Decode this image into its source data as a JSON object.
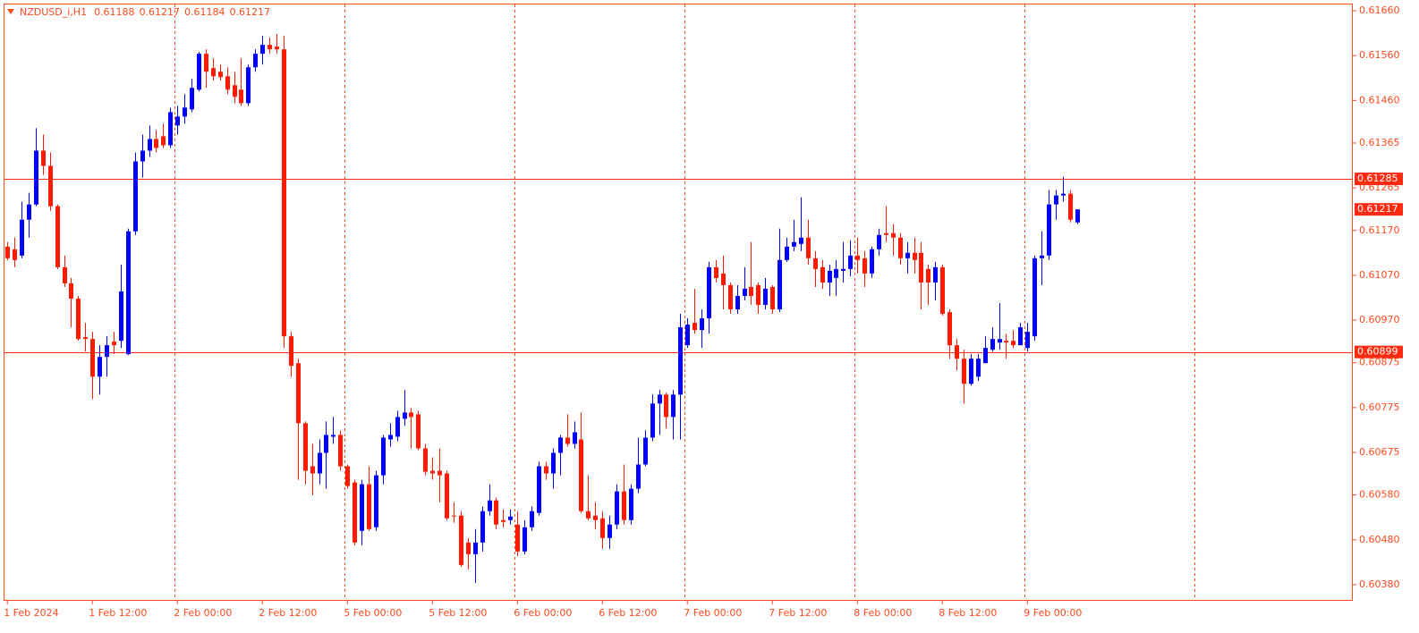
{
  "chart_data": {
    "type": "candlestick",
    "title": "NZDUSD_i,H1",
    "up_color": "#0000ff",
    "down_color": "#ff1a00",
    "axis_color": "#ff4a1c",
    "level_color": "#ff2a10",
    "grid": true,
    "categories": [
      "1 Feb 2024",
      null,
      null,
      null,
      null,
      null,
      null,
      null,
      null,
      null,
      null,
      null,
      "1 Feb 12:00",
      null,
      null,
      null,
      null,
      null,
      null,
      null,
      null,
      null,
      null,
      null,
      "2 Feb 00:00",
      null,
      null,
      null,
      null,
      null,
      null,
      null,
      null,
      null,
      null,
      null,
      "2 Feb 12:00",
      null,
      null,
      null,
      null,
      null,
      null,
      null,
      null,
      null,
      null,
      null,
      "5 Feb 00:00",
      null,
      null,
      null,
      null,
      null,
      null,
      null,
      null,
      null,
      null,
      null,
      "5 Feb 12:00",
      null,
      null,
      null,
      null,
      null,
      null,
      null,
      null,
      null,
      null,
      null,
      "6 Feb 00:00",
      null,
      null,
      null,
      null,
      null,
      null,
      null,
      null,
      null,
      null,
      null,
      "6 Feb 12:00",
      null,
      null,
      null,
      null,
      null,
      null,
      null,
      null,
      null,
      null,
      null,
      "7 Feb 00:00",
      null,
      null,
      null,
      null,
      null,
      null,
      null,
      null,
      null,
      null,
      null,
      "7 Feb 12:00",
      null,
      null,
      null,
      null,
      null,
      null,
      null,
      null,
      null,
      null,
      null,
      "8 Feb 00:00",
      null,
      null,
      null,
      null,
      null,
      null,
      null,
      null,
      null,
      null,
      null,
      "8 Feb 12:00",
      null,
      null,
      null,
      null,
      null,
      null,
      null,
      null,
      null,
      null,
      null,
      "9 Feb 00:00",
      null,
      null,
      null,
      null,
      null,
      null,
      null
    ],
    "open": [
      0.61134,
      0.61128,
      0.61114,
      0.61194,
      0.61228,
      0.61348,
      0.61314,
      0.61224,
      0.61088,
      0.61052,
      0.61018,
      0.60932,
      0.60928,
      0.60844,
      0.60888,
      0.60922,
      0.60924,
      0.60894,
      0.61168,
      0.61324,
      0.61348,
      0.61374,
      0.6138,
      0.6136,
      0.61404,
      0.61424,
      0.6144,
      0.61484,
      0.61564,
      0.61532,
      0.61524,
      0.61514,
      0.61494,
      0.61484,
      0.61454,
      0.61534,
      0.61564,
      0.61584,
      0.6158,
      0.61574,
      0.60934,
      0.60874,
      0.6074,
      0.60644,
      0.60628,
      0.60674,
      0.6071,
      0.60714,
      0.60644,
      0.60608,
      0.605,
      0.60604,
      0.60508,
      0.60624,
      0.60704,
      0.6071,
      0.6075,
      0.60764,
      0.6076,
      0.60684,
      0.60634,
      0.60634,
      0.60628,
      0.60534,
      0.60534,
      0.60474,
      0.60448,
      0.60474,
      0.60544,
      0.60568,
      0.60524,
      0.60524,
      0.60514,
      0.60454,
      0.60508,
      0.6054,
      0.60644,
      0.60628,
      0.60674,
      0.60708,
      0.60694,
      0.60704,
      0.60544,
      0.60534,
      0.60528,
      0.60484,
      0.60514,
      0.60588,
      0.60524,
      0.60594,
      0.60648,
      0.60708,
      0.60784,
      0.60804,
      0.60754,
      0.60804,
      0.60914,
      0.60964,
      0.60948,
      0.60974,
      0.61088,
      0.61074,
      0.61048,
      0.60994,
      0.61024,
      0.61044,
      0.61048,
      0.61004,
      0.61044,
      0.60994,
      0.61104,
      0.61134,
      0.6114,
      0.61154,
      0.61108,
      0.61088,
      0.61054,
      0.61064,
      0.6108,
      0.61084,
      0.61114,
      0.61108,
      0.61074,
      0.61128,
      0.61164,
      0.61164,
      0.61154,
      0.61108,
      0.6112,
      0.6112,
      0.61084,
      0.61054,
      0.61088,
      0.60988,
      0.60914,
      0.60884,
      0.60828,
      0.60844,
      0.60874,
      0.60904,
      0.6092,
      0.60924,
      0.60924,
      0.60914,
      0.60908,
      0.60934,
      0.61108,
      0.61114,
      0.61228,
      0.61248,
      0.61252,
      0.61188
    ],
    "high": [
      0.61144,
      0.61154,
      0.61234,
      0.61254,
      0.61398,
      0.61384,
      0.61344,
      0.61228,
      0.61114,
      0.61064,
      0.61024,
      0.60964,
      0.60944,
      0.60914,
      0.60934,
      0.60944,
      0.61094,
      0.61174,
      0.61344,
      0.61384,
      0.61404,
      0.61394,
      0.61408,
      0.61444,
      0.61448,
      0.61474,
      0.61508,
      0.61568,
      0.61574,
      0.61554,
      0.6154,
      0.61534,
      0.61524,
      0.61554,
      0.6154,
      0.61574,
      0.61604,
      0.616,
      0.61608,
      0.61604,
      0.60944,
      0.60884,
      0.60744,
      0.60694,
      0.60704,
      0.60744,
      0.60754,
      0.60724,
      0.60648,
      0.60614,
      0.60614,
      0.60644,
      0.60634,
      0.60714,
      0.6074,
      0.60768,
      0.60814,
      0.60774,
      0.60768,
      0.60694,
      0.60664,
      0.60684,
      0.60634,
      0.60564,
      0.60544,
      0.60484,
      0.60504,
      0.60554,
      0.60604,
      0.60574,
      0.60548,
      0.60548,
      0.60544,
      0.60524,
      0.60554,
      0.60654,
      0.60654,
      0.60684,
      0.60714,
      0.6076,
      0.60744,
      0.60764,
      0.60624,
      0.60564,
      0.60544,
      0.60534,
      0.60604,
      0.60648,
      0.60604,
      0.60708,
      0.60724,
      0.60804,
      0.60814,
      0.60808,
      0.60814,
      0.60984,
      0.60974,
      0.6104,
      0.60994,
      0.611,
      0.61104,
      0.61114,
      0.61054,
      0.61048,
      0.61088,
      0.61144,
      0.61054,
      0.61064,
      0.61048,
      0.61174,
      0.61154,
      0.61194,
      0.61244,
      0.61194,
      0.61124,
      0.61104,
      0.61094,
      0.61104,
      0.61144,
      0.61148,
      0.61154,
      0.61124,
      0.61134,
      0.61174,
      0.61224,
      0.61184,
      0.61164,
      0.61144,
      0.61154,
      0.61144,
      0.61094,
      0.611,
      0.61094,
      0.60994,
      0.60928,
      0.60904,
      0.60894,
      0.60894,
      0.60934,
      0.60954,
      0.61008,
      0.6094,
      0.60948,
      0.60964,
      0.60964,
      0.61114,
      0.61168,
      0.6126,
      0.6126,
      0.6129,
      0.6126,
      0.61217
    ],
    "low": [
      0.61104,
      0.61088,
      0.61108,
      0.61154,
      0.61224,
      0.61294,
      0.61214,
      0.61084,
      0.61044,
      0.60954,
      0.60924,
      0.609,
      0.60794,
      0.60804,
      0.60844,
      0.60894,
      0.60908,
      0.60892,
      0.6116,
      0.61288,
      0.61334,
      0.61344,
      0.61354,
      0.61354,
      0.61384,
      0.61408,
      0.61434,
      0.6148,
      0.61488,
      0.61504,
      0.61504,
      0.61474,
      0.61454,
      0.61448,
      0.61448,
      0.61524,
      0.6154,
      0.61564,
      0.61564,
      0.60908,
      0.60844,
      0.60614,
      0.60604,
      0.6058,
      0.60604,
      0.60594,
      0.60694,
      0.60634,
      0.60594,
      0.60468,
      0.60468,
      0.605,
      0.605,
      0.60604,
      0.60688,
      0.607,
      0.60734,
      0.60684,
      0.6068,
      0.60624,
      0.60614,
      0.60564,
      0.60524,
      0.60518,
      0.6042,
      0.60414,
      0.60384,
      0.60454,
      0.60534,
      0.60504,
      0.60508,
      0.60514,
      0.60444,
      0.60448,
      0.605,
      0.60534,
      0.60614,
      0.60594,
      0.60624,
      0.60688,
      0.60684,
      0.6054,
      0.60524,
      0.60504,
      0.6046,
      0.6046,
      0.60504,
      0.60514,
      0.60514,
      0.60584,
      0.60644,
      0.607,
      0.60714,
      0.60728,
      0.60704,
      0.60704,
      0.60908,
      0.6094,
      0.60908,
      0.6094,
      0.61054,
      0.60994,
      0.60984,
      0.60984,
      0.61014,
      0.61004,
      0.60984,
      0.60994,
      0.60984,
      0.60988,
      0.611,
      0.61124,
      0.61124,
      0.61094,
      0.61044,
      0.6104,
      0.61024,
      0.61024,
      0.61054,
      0.61068,
      0.61074,
      0.61044,
      0.61064,
      0.61114,
      0.61144,
      0.61114,
      0.61094,
      0.61074,
      0.61074,
      0.60994,
      0.61004,
      0.61014,
      0.6098,
      0.60884,
      0.60858,
      0.60784,
      0.60824,
      0.60834,
      0.60874,
      0.609,
      0.60904,
      0.60884,
      0.60908,
      0.60914,
      0.609,
      0.60924,
      0.61048,
      0.61104,
      0.61194,
      0.61234,
      0.61188,
      0.61184
    ],
    "close": [
      0.61108,
      0.61104,
      0.61194,
      0.61228,
      0.61348,
      0.61314,
      0.61224,
      0.61088,
      0.61052,
      0.61018,
      0.60928,
      0.60928,
      0.60844,
      0.60888,
      0.60914,
      0.60914,
      0.61034,
      0.61168,
      0.61324,
      0.61348,
      0.61374,
      0.61354,
      0.6136,
      0.61434,
      0.61424,
      0.61444,
      0.61488,
      0.61564,
      0.61524,
      0.61514,
      0.61512,
      0.61484,
      0.61468,
      0.61454,
      0.61534,
      0.61564,
      0.61584,
      0.61574,
      0.61574,
      0.60934,
      0.60868,
      0.6074,
      0.60634,
      0.60628,
      0.60674,
      0.60714,
      0.60714,
      0.60644,
      0.606,
      0.60474,
      0.60604,
      0.60504,
      0.60624,
      0.60708,
      0.60714,
      0.60754,
      0.60764,
      0.60754,
      0.60684,
      0.60632,
      0.60628,
      0.60624,
      0.60528,
      0.60532,
      0.60424,
      0.60448,
      0.60474,
      0.60544,
      0.60568,
      0.60514,
      0.6052,
      0.60532,
      0.60454,
      0.60508,
      0.60544,
      0.60644,
      0.60628,
      0.60674,
      0.60708,
      0.60694,
      0.6072,
      0.60544,
      0.60528,
      0.60524,
      0.60484,
      0.60514,
      0.60588,
      0.60524,
      0.60594,
      0.60648,
      0.60708,
      0.60784,
      0.60804,
      0.60754,
      0.60804,
      0.60954,
      0.6096,
      0.60948,
      0.60974,
      0.61088,
      0.61064,
      0.61048,
      0.60994,
      0.61024,
      0.6104,
      0.61024,
      0.61004,
      0.6104,
      0.60994,
      0.61104,
      0.61134,
      0.61144,
      0.61154,
      0.61108,
      0.61084,
      0.61054,
      0.6108,
      0.61084,
      0.61084,
      0.61114,
      0.61104,
      0.61074,
      0.61128,
      0.6116,
      0.6116,
      0.61154,
      0.61108,
      0.6112,
      0.61104,
      0.61054,
      0.61054,
      0.61088,
      0.60984,
      0.60914,
      0.60884,
      0.60828,
      0.60884,
      0.60884,
      0.60908,
      0.60928,
      0.60928,
      0.6092,
      0.60914,
      0.60954,
      0.60944,
      0.61108,
      0.61114,
      0.61228,
      0.61248,
      0.61252,
      0.61194,
      0.61217
    ],
    "ylim": [
      0.60344,
      0.61676
    ],
    "yticks": [
      {
        "value": 0.6166,
        "label": "0.61660"
      },
      {
        "value": 0.6156,
        "label": "0.61560"
      },
      {
        "value": 0.6146,
        "label": "0.61460"
      },
      0.61365,
      0.61265,
      {
        "value": 0.6117,
        "label": "0.61170"
      },
      {
        "value": 0.6107,
        "label": "0.61070"
      },
      {
        "value": 0.6097,
        "label": "0.60970"
      },
      0.60875,
      0.60775,
      0.60675,
      {
        "value": 0.6058,
        "label": "0.60580"
      },
      {
        "value": 0.6048,
        "label": "0.60480"
      },
      {
        "value": 0.6038,
        "label": "0.60380"
      }
    ],
    "levels": [
      0.61285,
      0.60899
    ]
  }
}
